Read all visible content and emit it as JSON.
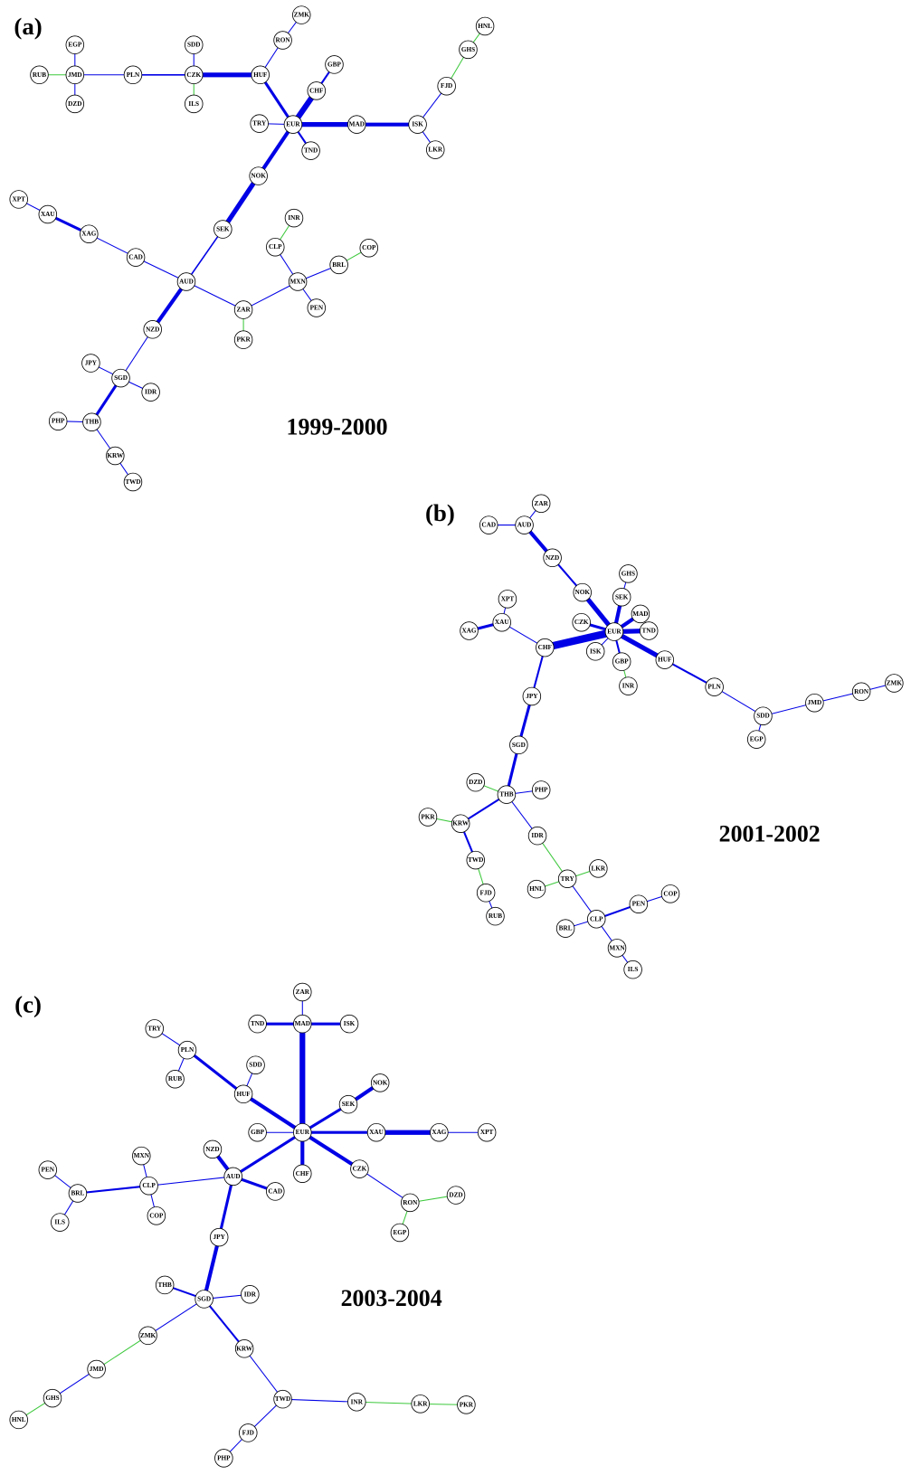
{
  "panels": [
    {
      "label": "(a)",
      "period": "1999-2000",
      "nodes": [
        "EGP",
        "RUB",
        "JMD",
        "DZD",
        "PLN",
        "SDD",
        "CZK",
        "ILS",
        "ZMK",
        "RON",
        "HUF",
        "GBP",
        "CHF",
        "TRY",
        "EUR",
        "TND",
        "MAD",
        "HNL",
        "GHS",
        "FJD",
        "ISK",
        "LKR",
        "NOK",
        "XPT",
        "XAU",
        "XAG",
        "SEK",
        "INR",
        "CLP",
        "COP",
        "BRL",
        "CAD",
        "MXN",
        "AUD",
        "PEN",
        "ZAR",
        "PKR",
        "NZD",
        "JPY",
        "SGD",
        "IDR",
        "PHP",
        "THB",
        "KRW",
        "TWD"
      ]
    },
    {
      "label": "(b)",
      "period": "2001-2002",
      "nodes": [
        "ZAR",
        "CAD",
        "AUD",
        "NZD",
        "XPT",
        "GHS",
        "NOK",
        "SEK",
        "XAU",
        "MAD",
        "CZK",
        "EUR",
        "TND",
        "XAG",
        "CHF",
        "ISK",
        "HUF",
        "GBP",
        "INR",
        "PLN",
        "JPY",
        "ZMK",
        "RON",
        "JMD",
        "SDD",
        "EGP",
        "SGD",
        "DZD",
        "THB",
        "PHP",
        "PKR",
        "KRW",
        "IDR",
        "TWD",
        "LKR",
        "TRY",
        "HNL",
        "FJD",
        "COP",
        "PEN",
        "RUB",
        "BRL",
        "CLP",
        "MXN",
        "ILS"
      ]
    },
    {
      "label": "(c)",
      "period": "2003-2004",
      "nodes": [
        "ZAR",
        "TND",
        "MAD",
        "ISK",
        "TRY",
        "PLN",
        "SDD",
        "RUB",
        "NOK",
        "HUF",
        "SEK",
        "GBP",
        "EUR",
        "XAU",
        "XAG",
        "XPT",
        "NZD",
        "MXN",
        "CHF",
        "AUD",
        "PEN",
        "CZK",
        "CLP",
        "BRL",
        "CAD",
        "DZD",
        "RON",
        "COP",
        "ILS",
        "EGP",
        "JPY",
        "THB",
        "IDR",
        "SGD",
        "ZMK",
        "KRW",
        "JMD",
        "GHS",
        "TWD",
        "INR",
        "LKR",
        "PKR",
        "HNL",
        "FJD",
        "PHP"
      ]
    }
  ]
}
